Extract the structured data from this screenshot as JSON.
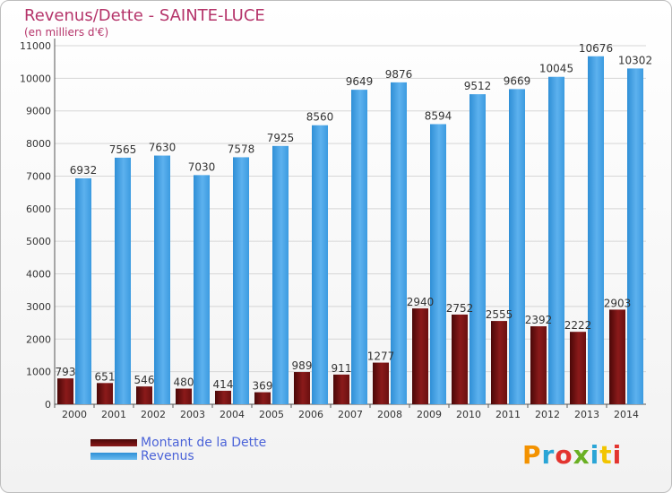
{
  "title": "Revenus/Dette - SAINTE-LUCE",
  "subtitle": "(en milliers d'€)",
  "logo": {
    "text": "Proxiti",
    "colors": [
      "#f39200",
      "#2aa5d6",
      "#e3342f",
      "#6ab023",
      "#2aa5d6",
      "#f2c500",
      "#e3342f"
    ]
  },
  "colors": {
    "title": "#b5346a",
    "legend_text": "#4b63d8",
    "dette": "#7b1414",
    "revenus": "#4da6e8",
    "grid": "#d6d6d6"
  },
  "chart_data": {
    "type": "bar",
    "categories": [
      "2000",
      "2001",
      "2002",
      "2003",
      "2004",
      "2005",
      "2006",
      "2007",
      "2008",
      "2009",
      "2010",
      "2011",
      "2012",
      "2013",
      "2014"
    ],
    "series": [
      {
        "name": "Montant de la Dette",
        "values": [
          793,
          651,
          546,
          480,
          414,
          369,
          989,
          911,
          1277,
          2940,
          2752,
          2555,
          2392,
          2222,
          2903
        ],
        "labels": [
          "793",
          "651",
          "546",
          "480",
          "414",
          "369",
          "989",
          "911",
          "1277",
          "2940",
          "2752",
          "2555",
          "2392",
          "2222",
          "2903"
        ]
      },
      {
        "name": "Revenus",
        "values": [
          6932,
          7565,
          7630,
          7030,
          7578,
          7925,
          8560,
          9649,
          9876,
          8594,
          9512,
          9669,
          10045,
          10676,
          10302
        ],
        "labels": [
          "6932",
          "7565",
          "7630",
          "7030",
          "7578",
          "7925",
          "8560",
          "9649",
          "9876",
          "8594",
          "9512",
          "9669",
          "10045",
          "10676",
          "10302"
        ]
      }
    ],
    "yticks": [
      0,
      1000,
      2000,
      3000,
      4000,
      5000,
      6000,
      7000,
      8000,
      9000,
      10000,
      11000
    ],
    "ylim": [
      0,
      11000
    ],
    "grid": true,
    "legend_position": "bottom-left"
  }
}
